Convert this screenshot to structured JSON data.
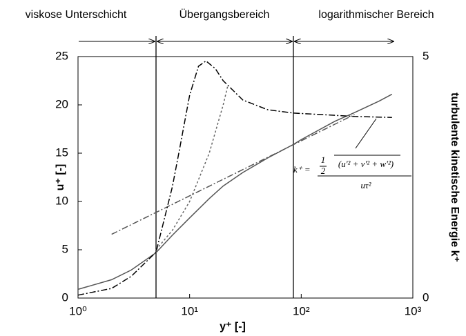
{
  "chart_data": {
    "type": "line",
    "regions": [
      "viskose Unterschicht",
      "Übergangsbereich",
      "logarithmischer Bereich"
    ],
    "boundaries": [
      5,
      85
    ],
    "xlabel": "y⁺ [-]",
    "ylabel": "u⁺ [-]",
    "y2label": "turbulente kinetische Energie k⁺",
    "xscale": "log",
    "xlim": [
      1,
      1000
    ],
    "xticks": [
      {
        "value": 1,
        "label": "10⁰"
      },
      {
        "value": 10,
        "label": "10¹"
      },
      {
        "value": 100,
        "label": "10²"
      },
      {
        "value": 1000,
        "label": "10³"
      }
    ],
    "ylim": [
      0,
      25
    ],
    "yticks": [
      0,
      5,
      10,
      15,
      20,
      25
    ],
    "y2lim": [
      0,
      5
    ],
    "y2ticks": [
      0,
      5
    ],
    "series": [
      {
        "color": "#555555",
        "style": "solid",
        "x": [
          1,
          2,
          3,
          5,
          7,
          10,
          15,
          20,
          30,
          50,
          85,
          100,
          200,
          300,
          500,
          650
        ],
        "values": [
          0.9,
          1.9,
          2.9,
          4.7,
          6.5,
          8.3,
          10.3,
          11.6,
          13,
          14.5,
          15.9,
          16.4,
          18.3,
          19.2,
          20.4,
          21.1
        ]
      },
      {
        "color": "#666666",
        "style": "dotted",
        "x": [
          5,
          7,
          10,
          15,
          20,
          22
        ],
        "values": [
          5,
          7,
          10,
          15,
          20,
          22
        ]
      },
      {
        "color": "#555555",
        "style": "dashdot",
        "x": [
          2,
          300
        ],
        "values": [
          6.6,
          19.0
        ]
      },
      {
        "color": "#000000",
        "style": "dashdot",
        "axis": "y2",
        "x": [
          1,
          2,
          3,
          5,
          7,
          8,
          10,
          12,
          14,
          17,
          20,
          30,
          50,
          85,
          150,
          300,
          650
        ],
        "values": [
          0.06,
          0.2,
          0.45,
          0.95,
          2.3,
          3.0,
          4.2,
          4.8,
          4.91,
          4.75,
          4.5,
          4.1,
          3.9,
          3.83,
          3.8,
          3.76,
          3.74
        ]
      }
    ],
    "formula": {
      "lhs": "k⁺ =",
      "half_num": "1",
      "half_den": "2",
      "numerator": "(u'² + v'² + w'²)",
      "denominator": "uτ²"
    }
  }
}
